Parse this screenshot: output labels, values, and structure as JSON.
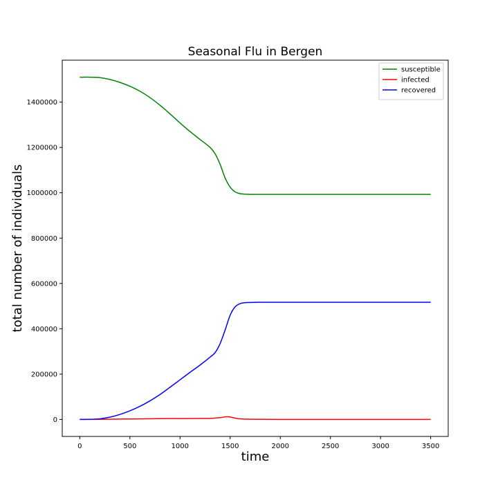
{
  "chart_data": {
    "type": "line",
    "title": "Seasonal Flu in Bergen",
    "xlabel": "time",
    "ylabel": "total number of individuals",
    "xlim": [
      -175,
      3675
    ],
    "ylim": [
      -75000,
      1585000
    ],
    "xticks": [
      0,
      500,
      1000,
      1500,
      2000,
      2500,
      3000,
      3500
    ],
    "yticks": [
      0,
      200000,
      400000,
      600000,
      800000,
      1000000,
      1200000,
      1400000
    ],
    "grid": false,
    "legend_position": "top-right",
    "series": [
      {
        "name": "susceptible",
        "color": "#008000",
        "x": [
          0,
          100,
          200,
          300,
          400,
          500,
          600,
          700,
          800,
          900,
          1000,
          1100,
          1200,
          1300,
          1350,
          1400,
          1450,
          1500,
          1550,
          1600,
          1650,
          1700,
          1800,
          2000,
          2500,
          3000,
          3500
        ],
        "y": [
          1510000,
          1510000,
          1508000,
          1500000,
          1487000,
          1470000,
          1448000,
          1420000,
          1386000,
          1348000,
          1308000,
          1270000,
          1235000,
          1200000,
          1172000,
          1125000,
          1065000,
          1025000,
          1004000,
          996000,
          994000,
          993000,
          993000,
          993000,
          993000,
          993000,
          993000
        ]
      },
      {
        "name": "infected",
        "color": "#ff0000",
        "x": [
          0,
          200,
          400,
          600,
          800,
          1000,
          1200,
          1300,
          1400,
          1450,
          1480,
          1520,
          1570,
          1620,
          1700,
          1800,
          2000,
          2500,
          3000,
          3500
        ],
        "y": [
          0,
          500,
          1500,
          2500,
          3500,
          4000,
          4200,
          4500,
          8000,
          11500,
          12000,
          9000,
          4000,
          2000,
          1000,
          500,
          300,
          100,
          50,
          0
        ],
        "x_note": null
      },
      {
        "name": "recovered",
        "color": "#0000ff",
        "x": [
          0,
          100,
          200,
          300,
          400,
          500,
          600,
          700,
          800,
          900,
          1000,
          1100,
          1200,
          1300,
          1350,
          1400,
          1450,
          1500,
          1550,
          1600,
          1650,
          1700,
          1800,
          2000,
          2500,
          3000,
          3500
        ],
        "y": [
          0,
          500,
          3000,
          10000,
          22000,
          38000,
          58000,
          82000,
          110000,
          142000,
          175000,
          208000,
          240000,
          275000,
          295000,
          335000,
          395000,
          460000,
          497000,
          511000,
          515000,
          516000,
          517000,
          517000,
          517000,
          517000,
          517000
        ]
      }
    ]
  }
}
